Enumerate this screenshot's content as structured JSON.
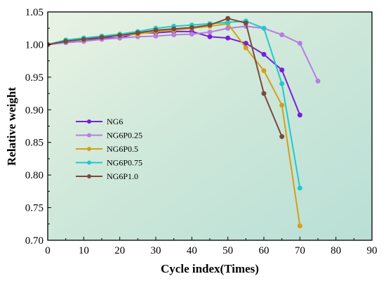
{
  "chart_data": {
    "type": "line",
    "title": "",
    "xlabel": "Cycle index(Times)",
    "ylabel": "Relative weight",
    "xlim": [
      0,
      90
    ],
    "ylim": [
      0.7,
      1.05
    ],
    "x_ticks": [
      "0",
      "10",
      "20",
      "30",
      "40",
      "50",
      "60",
      "70",
      "80",
      "90"
    ],
    "y_ticks": [
      "0.70",
      "0.75",
      "0.80",
      "0.85",
      "0.90",
      "0.95",
      "1.00",
      "1.05"
    ],
    "grid": false,
    "legend_position": "center-left",
    "series": [
      {
        "name": "NG6",
        "color": "#7a1fd6",
        "x": [
          0,
          5,
          10,
          15,
          20,
          25,
          30,
          35,
          40,
          45,
          50,
          55,
          60,
          65,
          70
        ],
        "y": [
          1.0,
          1.003,
          1.005,
          1.01,
          1.01,
          1.018,
          1.018,
          1.02,
          1.02,
          1.012,
          1.01,
          1.002,
          0.985,
          0.961,
          0.892
        ]
      },
      {
        "name": "NG6P0.25",
        "color": "#b77ee0",
        "x": [
          0,
          5,
          10,
          15,
          20,
          25,
          30,
          35,
          40,
          45,
          50,
          55,
          60,
          65,
          70,
          75
        ],
        "y": [
          1.0,
          1.003,
          1.005,
          1.008,
          1.01,
          1.012,
          1.013,
          1.015,
          1.016,
          1.019,
          1.025,
          1.028,
          1.025,
          1.015,
          1.002,
          0.944
        ]
      },
      {
        "name": "NG6P0.5",
        "color": "#d4a017",
        "x": [
          0,
          5,
          10,
          15,
          20,
          25,
          30,
          35,
          40,
          45,
          50,
          55,
          60,
          65,
          70
        ],
        "y": [
          1.0,
          1.005,
          1.008,
          1.011,
          1.014,
          1.016,
          1.02,
          1.022,
          1.025,
          1.028,
          1.032,
          0.995,
          0.96,
          0.907,
          0.722
        ]
      },
      {
        "name": "NG6P0.75",
        "color": "#22c9cf",
        "x": [
          0,
          5,
          10,
          15,
          20,
          25,
          30,
          35,
          40,
          45,
          50,
          55,
          60,
          65,
          70
        ],
        "y": [
          1.0,
          1.007,
          1.01,
          1.013,
          1.016,
          1.02,
          1.025,
          1.028,
          1.03,
          1.032,
          1.034,
          1.036,
          1.025,
          0.94,
          0.78
        ]
      },
      {
        "name": "NG6P1.0",
        "color": "#7b4a3a",
        "x": [
          0,
          5,
          10,
          15,
          20,
          25,
          30,
          35,
          40,
          45,
          50,
          55,
          60,
          65
        ],
        "y": [
          1.0,
          1.005,
          1.008,
          1.011,
          1.014,
          1.018,
          1.022,
          1.024,
          1.026,
          1.03,
          1.04,
          1.033,
          0.925,
          0.859
        ]
      }
    ]
  }
}
